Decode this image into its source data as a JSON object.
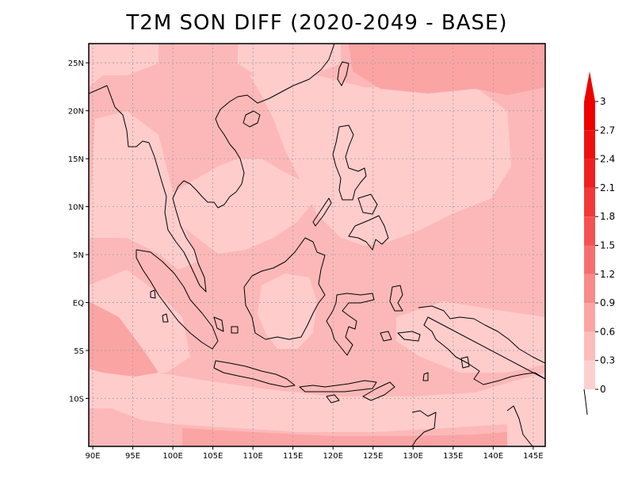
{
  "title": "T2M SON DIFF (2020-2049 - BASE)",
  "map": {
    "lon_range": [
      89.5,
      146.5
    ],
    "lat_range": [
      -15,
      27
    ],
    "grid": true,
    "lon_ticks": [
      {
        "v": 90,
        "label": "90E"
      },
      {
        "v": 95,
        "label": "95E"
      },
      {
        "v": 100,
        "label": "100E"
      },
      {
        "v": 105,
        "label": "105E"
      },
      {
        "v": 110,
        "label": "110E"
      },
      {
        "v": 115,
        "label": "115E"
      },
      {
        "v": 120,
        "label": "120E"
      },
      {
        "v": 125,
        "label": "125E"
      },
      {
        "v": 130,
        "label": "130E"
      },
      {
        "v": 135,
        "label": "135E"
      },
      {
        "v": 140,
        "label": "140E"
      },
      {
        "v": 145,
        "label": "145E"
      }
    ],
    "lat_ticks": [
      {
        "v": 25,
        "label": "25N"
      },
      {
        "v": 20,
        "label": "20N"
      },
      {
        "v": 15,
        "label": "15N"
      },
      {
        "v": 10,
        "label": "10N"
      },
      {
        "v": 5,
        "label": "5N"
      },
      {
        "v": 0,
        "label": "EQ"
      },
      {
        "v": -5,
        "label": "5S"
      },
      {
        "v": -10,
        "label": "10S"
      }
    ]
  },
  "colorbar": {
    "levels": [
      "0",
      "0.3",
      "0.6",
      "0.9",
      "1.2",
      "1.5",
      "1.8",
      "2.1",
      "2.4",
      "2.7",
      "3"
    ],
    "colors": [
      "#fee6e6",
      "#fdd0d0",
      "#fcbcbc",
      "#fba4a4",
      "#f98a8a",
      "#f76e6e",
      "#f45252",
      "#f23838",
      "#ef2020",
      "#ee1010",
      "#ee0000"
    ]
  },
  "field_colors": {
    "low": "#ffcccc",
    "mid": "#fcb8b8",
    "high": "#fba4a4"
  }
}
